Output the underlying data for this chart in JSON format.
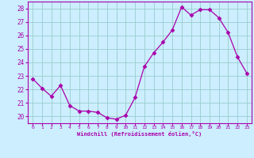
{
  "hours": [
    0,
    1,
    2,
    3,
    4,
    5,
    6,
    7,
    8,
    9,
    10,
    11,
    12,
    13,
    14,
    15,
    16,
    17,
    18,
    19,
    20,
    21,
    22,
    23
  ],
  "values": [
    22.8,
    22.1,
    21.5,
    22.3,
    20.8,
    20.4,
    20.4,
    20.3,
    19.9,
    19.8,
    20.1,
    21.4,
    23.7,
    24.7,
    25.5,
    26.4,
    28.1,
    27.5,
    27.9,
    27.9,
    27.3,
    26.2,
    24.4,
    23.2
  ],
  "line_color": "#aa00aa",
  "marker": "D",
  "marker_size": 2.5,
  "background_color": "#cceeff",
  "grid_color": "#99cccc",
  "xlabel": "Windchill (Refroidissement éolien,°C)",
  "xlabel_color": "#aa00aa",
  "tick_color": "#aa00aa",
  "ylim": [
    19.5,
    28.5
  ],
  "yticks": [
    20,
    21,
    22,
    23,
    24,
    25,
    26,
    27,
    28
  ],
  "xlim": [
    -0.5,
    23.5
  ],
  "xticks": [
    0,
    1,
    2,
    3,
    4,
    5,
    6,
    7,
    8,
    9,
    10,
    11,
    12,
    13,
    14,
    15,
    16,
    17,
    18,
    19,
    20,
    21,
    22,
    23
  ],
  "figwidth": 3.2,
  "figheight": 2.0,
  "dpi": 100
}
